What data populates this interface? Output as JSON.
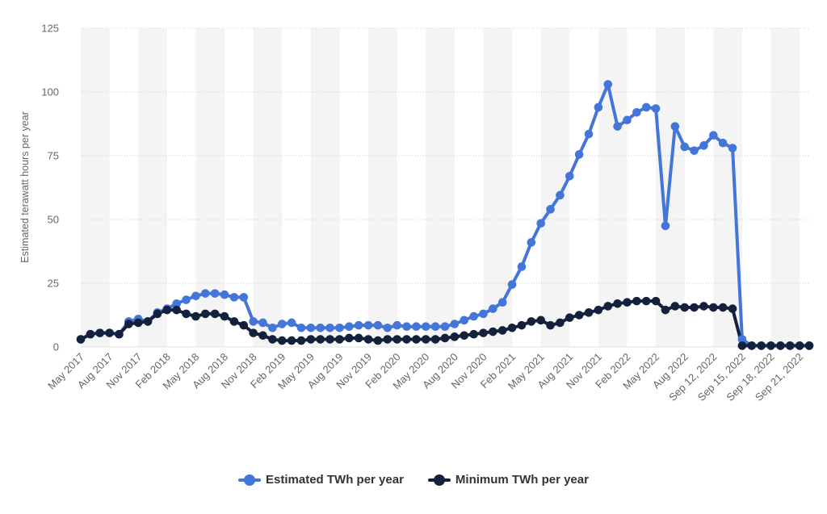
{
  "chart_data": {
    "type": "line",
    "title": "",
    "ylabel": "Estimated terawatt hours per year",
    "xlabel": "",
    "ylim": [
      0,
      125
    ],
    "yticks": [
      0,
      25,
      50,
      75,
      100,
      125
    ],
    "grid": true,
    "legend_position": "bottom",
    "xtick_labels": [
      "May 2017",
      "Aug 2017",
      "Nov 2017",
      "Feb 2018",
      "May 2018",
      "Aug 2018",
      "Nov 2018",
      "Feb 2019",
      "May 2019",
      "Aug 2019",
      "Nov 2019",
      "Feb 2020",
      "May 2020",
      "Aug 2020",
      "Nov 2020",
      "Feb 2021",
      "May 2021",
      "Aug 2021",
      "Nov 2021",
      "Feb 2022",
      "May 2022",
      "Aug 2022",
      "Sep 12, 2022",
      "Sep 15, 2022",
      "Sep 18, 2022",
      "Sep 21, 2022"
    ],
    "xtick_positions": [
      0,
      3,
      6,
      9,
      12,
      15,
      18,
      21,
      24,
      27,
      30,
      33,
      36,
      39,
      42,
      45,
      48,
      51,
      54,
      57,
      60,
      63,
      66,
      69,
      72,
      75
    ],
    "series": [
      {
        "name": "Estimated TWh per year",
        "color": "#4475d9",
        "values": [
          3,
          5,
          5.5,
          5.5,
          5,
          10,
          11,
          10,
          13.5,
          15,
          17,
          18.5,
          20,
          21,
          21,
          20.5,
          19.5,
          19.5,
          10,
          9.5,
          7.5,
          9,
          9.5,
          7.5,
          7.5,
          7.5,
          7.5,
          7.5,
          8,
          8.5,
          8.5,
          8.5,
          7.5,
          8.5,
          8,
          8,
          8,
          8,
          8,
          9,
          10.5,
          12,
          13,
          15,
          17.5,
          24.5,
          31.5,
          41,
          48.5,
          54,
          59.5,
          67,
          75.5,
          83.5,
          94,
          103,
          86.5,
          89,
          92,
          94,
          93.5,
          47.5,
          86.5,
          78.5,
          77,
          79,
          83,
          80,
          78,
          3,
          0.5,
          0.5,
          0.5,
          0.5,
          0.5,
          0.5,
          0.5
        ]
      },
      {
        "name": "Minimum TWh per year",
        "color": "#14213d",
        "values": [
          3,
          5,
          5.5,
          5.5,
          5,
          9,
          9.5,
          10,
          13,
          14.5,
          14.5,
          13,
          12,
          13,
          13,
          12,
          10,
          8.5,
          5.5,
          4.5,
          3,
          2.5,
          2.5,
          2.5,
          3,
          3,
          3,
          3,
          3.5,
          3.5,
          3,
          2.5,
          3,
          3,
          3,
          3,
          3,
          3,
          3.5,
          4,
          4.5,
          5,
          5.5,
          6,
          6.5,
          7.5,
          8.5,
          10,
          10.5,
          8.5,
          9.5,
          11.5,
          12.5,
          13.5,
          14.5,
          16,
          17,
          17.5,
          18,
          18,
          18,
          14.5,
          16,
          15.5,
          15.5,
          16,
          15.5,
          15.5,
          15,
          0.5,
          0.5,
          0.5,
          0.5,
          0.5,
          0.5,
          0.5,
          0.5
        ]
      }
    ]
  }
}
